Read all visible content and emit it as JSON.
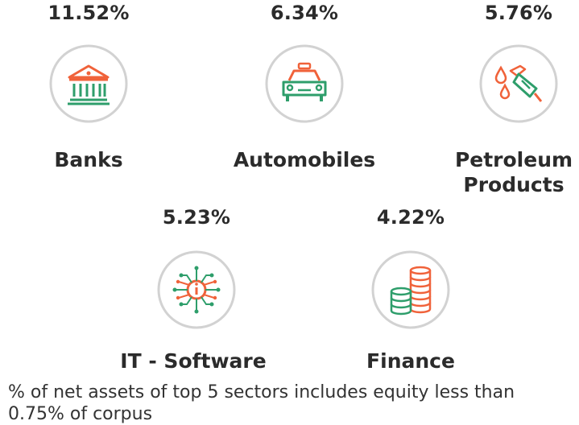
{
  "sectors": [
    {
      "name": "Banks",
      "percent": "11.52%",
      "icon": "bank-icon"
    },
    {
      "name": "Automobiles",
      "percent": "6.34%",
      "icon": "car-icon"
    },
    {
      "name_line1": "Petroleum",
      "name_line2": "Products",
      "percent": "5.76%",
      "icon": "fuel-nozzle-icon"
    },
    {
      "name": "IT - Software",
      "percent": "5.23%",
      "icon": "chip-icon"
    },
    {
      "name": "Finance",
      "percent": "4.22%",
      "icon": "coin-stacks-icon"
    }
  ],
  "footnote": "% of net assets of top 5 sectors includes equity less than 0.75% of corpus",
  "colors": {
    "green": "#2e9e6b",
    "orange": "#f0623a",
    "circle_border": "#cfcfcf",
    "text": "#2b2b2b"
  }
}
